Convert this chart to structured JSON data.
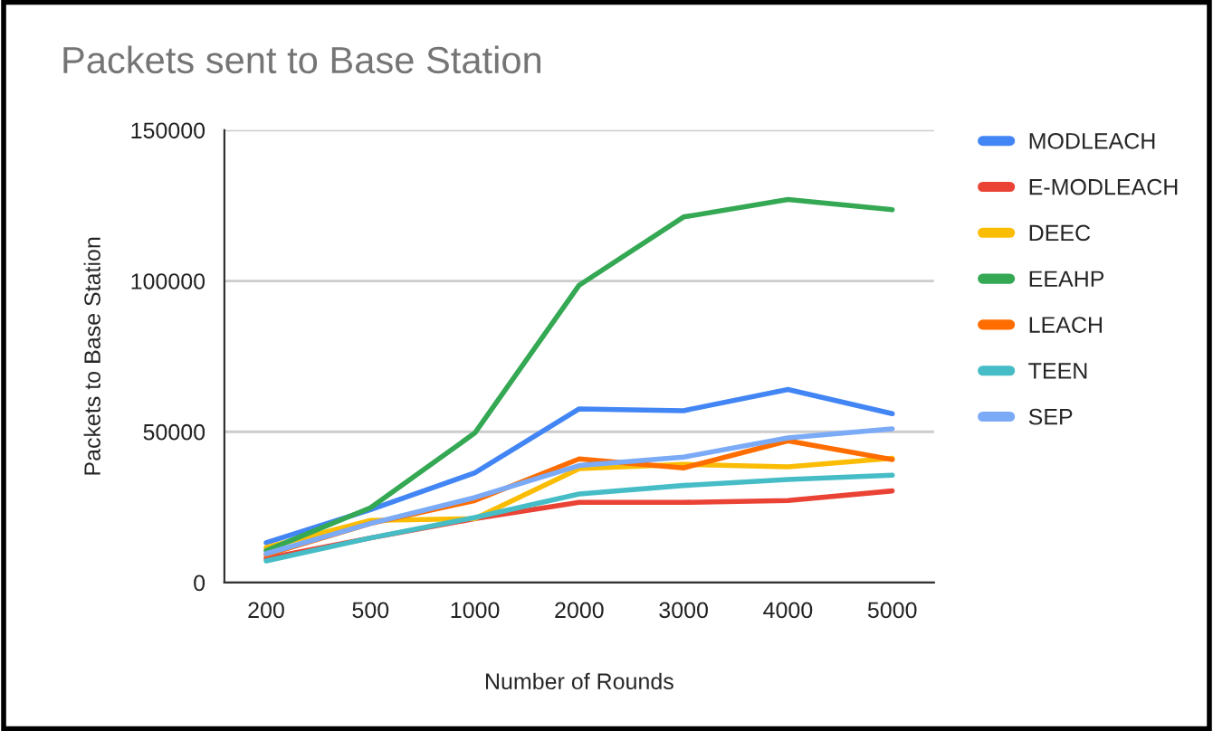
{
  "chart_data": {
    "type": "line",
    "title": "Packets sent to Base Station",
    "xlabel": "Number of Rounds",
    "ylabel": "Packets to Base Station",
    "categories": [
      "200",
      "500",
      "1000",
      "2000",
      "3000",
      "4000",
      "5000"
    ],
    "series": [
      {
        "name": "MODLEACH",
        "color": "#4285f4",
        "values": [
          13200,
          24200,
          36400,
          57600,
          57000,
          64000,
          56000
        ]
      },
      {
        "name": "E-MODLEACH",
        "color": "#ea4335",
        "values": [
          8000,
          14800,
          21200,
          26600,
          26600,
          27200,
          30400
        ]
      },
      {
        "name": "DEEC",
        "color": "#fbbc04",
        "values": [
          11600,
          20600,
          21200,
          37800,
          39200,
          38400,
          41200
        ]
      },
      {
        "name": "EEAHP",
        "color": "#34a853",
        "values": [
          10600,
          24800,
          49600,
          98600,
          121200,
          127000,
          123600
        ]
      },
      {
        "name": "LEACH",
        "color": "#ff6d01",
        "values": [
          9200,
          19600,
          27200,
          41000,
          38000,
          47000,
          40800
        ]
      },
      {
        "name": "TEEN",
        "color": "#46bdc6",
        "values": [
          7200,
          14800,
          21600,
          29400,
          32200,
          34200,
          35600
        ]
      },
      {
        "name": "SEP",
        "color": "#7baaf7",
        "values": [
          9600,
          19600,
          28200,
          38800,
          41600,
          48000,
          51000
        ]
      }
    ],
    "ylim": [
      0,
      150000
    ],
    "yticks": [
      0,
      50000,
      100000,
      150000
    ],
    "grid": "y",
    "legend": "right",
    "marker": "none",
    "line_style": "solid"
  }
}
